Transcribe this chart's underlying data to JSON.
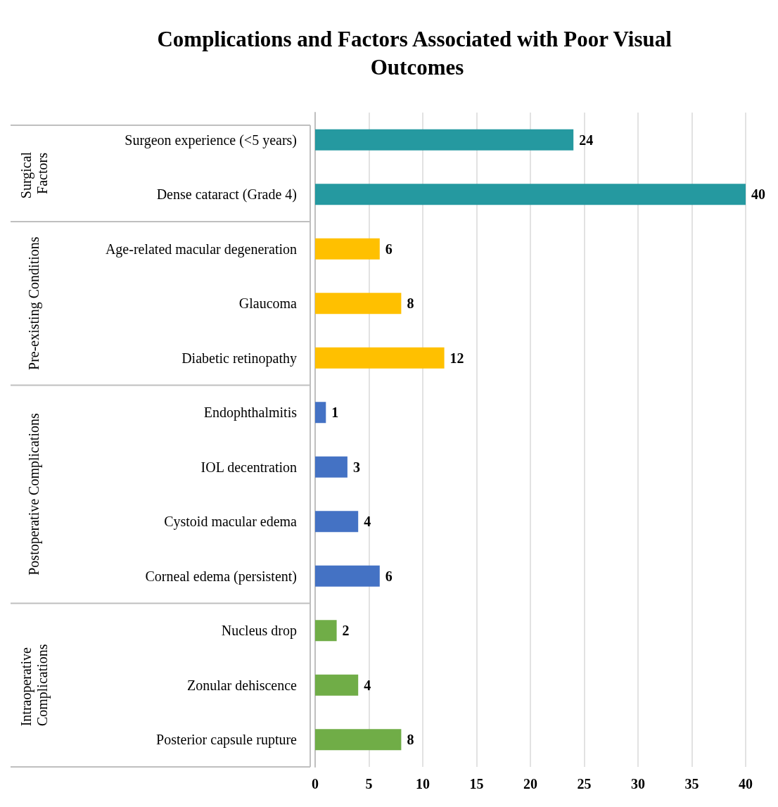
{
  "chart_data": {
    "type": "bar",
    "orientation": "horizontal",
    "title": "Complications and Factors Associated with Poor Visual Outcomes",
    "categories": [
      "Surgeon experience (<5 years)",
      "Dense cataract (Grade 4)",
      "Age-related macular degeneration",
      "Glaucoma",
      "Diabetic retinopathy",
      "Endophthalmitis",
      "IOL decentration",
      "Cystoid macular edema",
      "Corneal edema (persistent)",
      "Nucleus drop",
      "Zonular dehiscence",
      "Posterior capsule rupture"
    ],
    "values": [
      24,
      40,
      6,
      8,
      12,
      1,
      3,
      4,
      6,
      2,
      4,
      8
    ],
    "colors": [
      "#2599a0",
      "#2599a0",
      "#ffc000",
      "#ffc000",
      "#ffc000",
      "#4472c4",
      "#4472c4",
      "#4472c4",
      "#4472c4",
      "#70ad47",
      "#70ad47",
      "#70ad47"
    ],
    "annotations": [
      "Surgical Factors",
      "Pre-existing Conditions",
      "Postoperative Complications",
      "Intraoperative Complications"
    ],
    "xlim": [
      0,
      40
    ],
    "xticks": [
      0,
      5,
      10,
      15,
      20,
      25,
      30,
      35,
      40
    ],
    "grid": "x",
    "data_labels": true
  }
}
